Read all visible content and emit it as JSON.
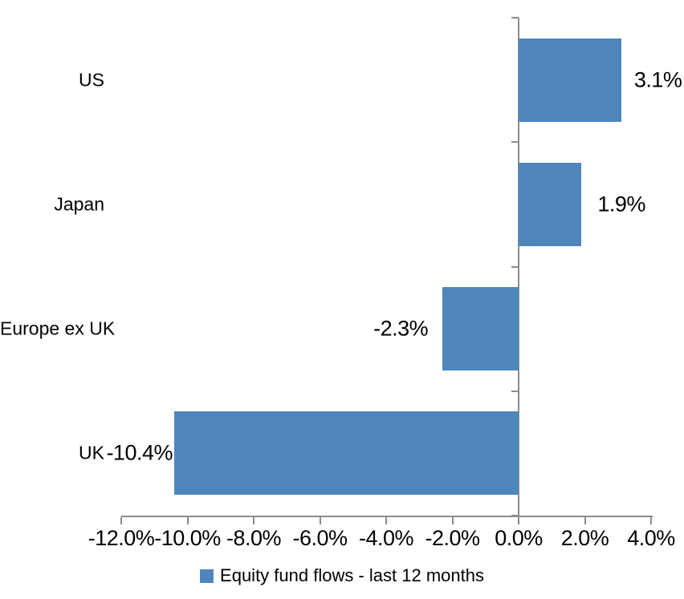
{
  "chart_data": {
    "type": "bar",
    "orientation": "horizontal",
    "title": "",
    "categories": [
      "US",
      "Japan",
      "Europe ex UK",
      "UK"
    ],
    "series": [
      {
        "name": "Equity fund flows - last 12 months",
        "values": [
          3.1,
          1.9,
          -2.3,
          -10.4
        ],
        "data_labels": [
          "3.1%",
          "1.9%",
          "-2.3%",
          "-10.4%"
        ]
      }
    ],
    "xlabel": "",
    "ylabel": "",
    "xlim": [
      -12,
      4
    ],
    "x_tick_values": [
      -12,
      -10,
      -8,
      -6,
      -4,
      -2,
      0,
      2,
      4
    ],
    "x_tick_labels": [
      "-12.0%",
      "-10.0%",
      "-8.0%",
      "-6.0%",
      "-4.0%",
      "-2.0%",
      "0.0%",
      "2.0%",
      "4.0%"
    ],
    "grid": false,
    "legend_position": "bottom",
    "bar_color": "#4E86BC",
    "axis_color": "#8C8C8C",
    "text_color": "#000000",
    "background_color": "#FFFFFF"
  }
}
